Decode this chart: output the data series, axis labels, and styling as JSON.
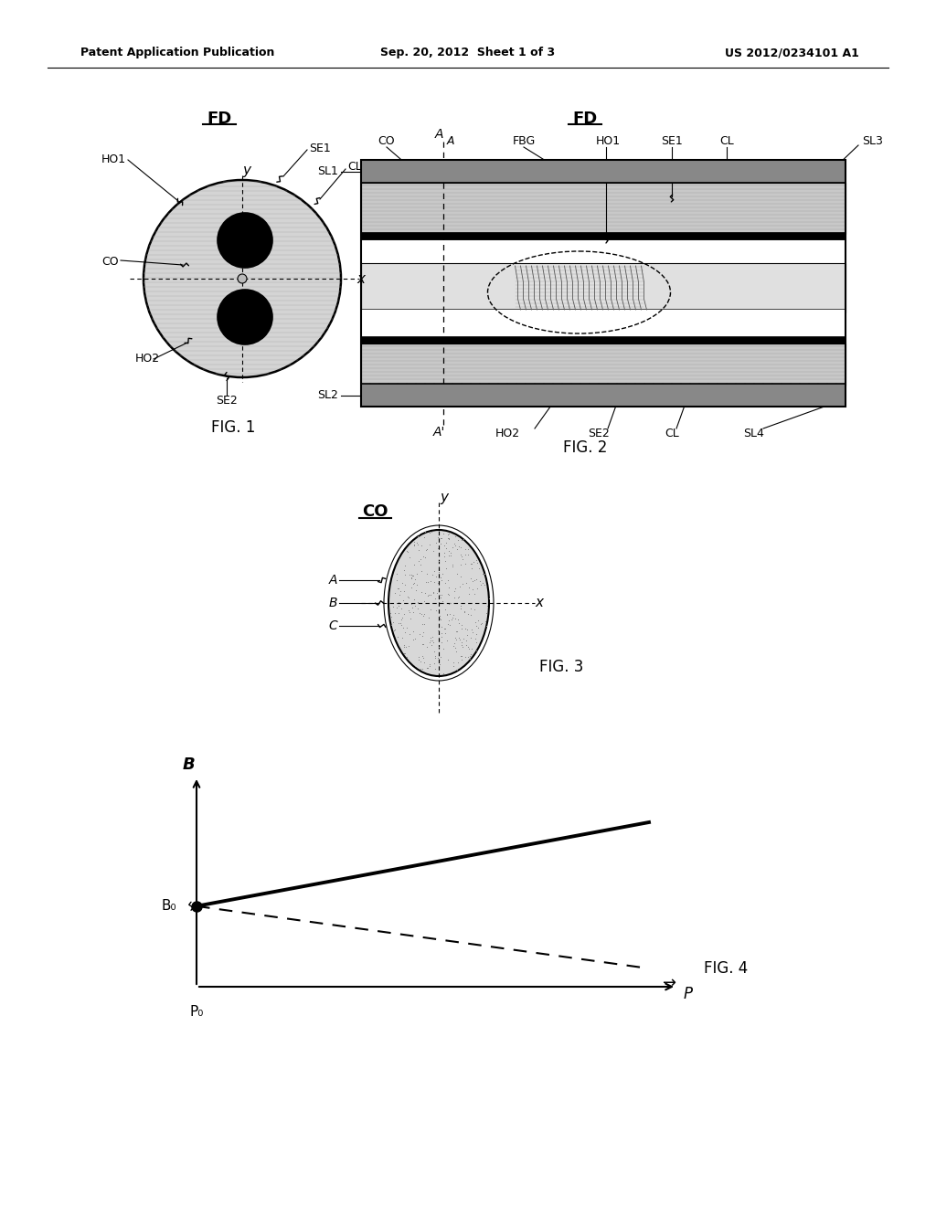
{
  "header_left": "Patent Application Publication",
  "header_center": "Sep. 20, 2012  Sheet 1 of 3",
  "header_right": "US 2012/0234101 A1",
  "background_color": "#ffffff",
  "fig1_title": "FD",
  "fig2_title": "FD",
  "fig3_title": "CO",
  "fig4_label": "FIG. 4",
  "fig1_label": "FIG. 1",
  "fig2_label": "FIG. 2",
  "fig3_label": "FIG. 3"
}
